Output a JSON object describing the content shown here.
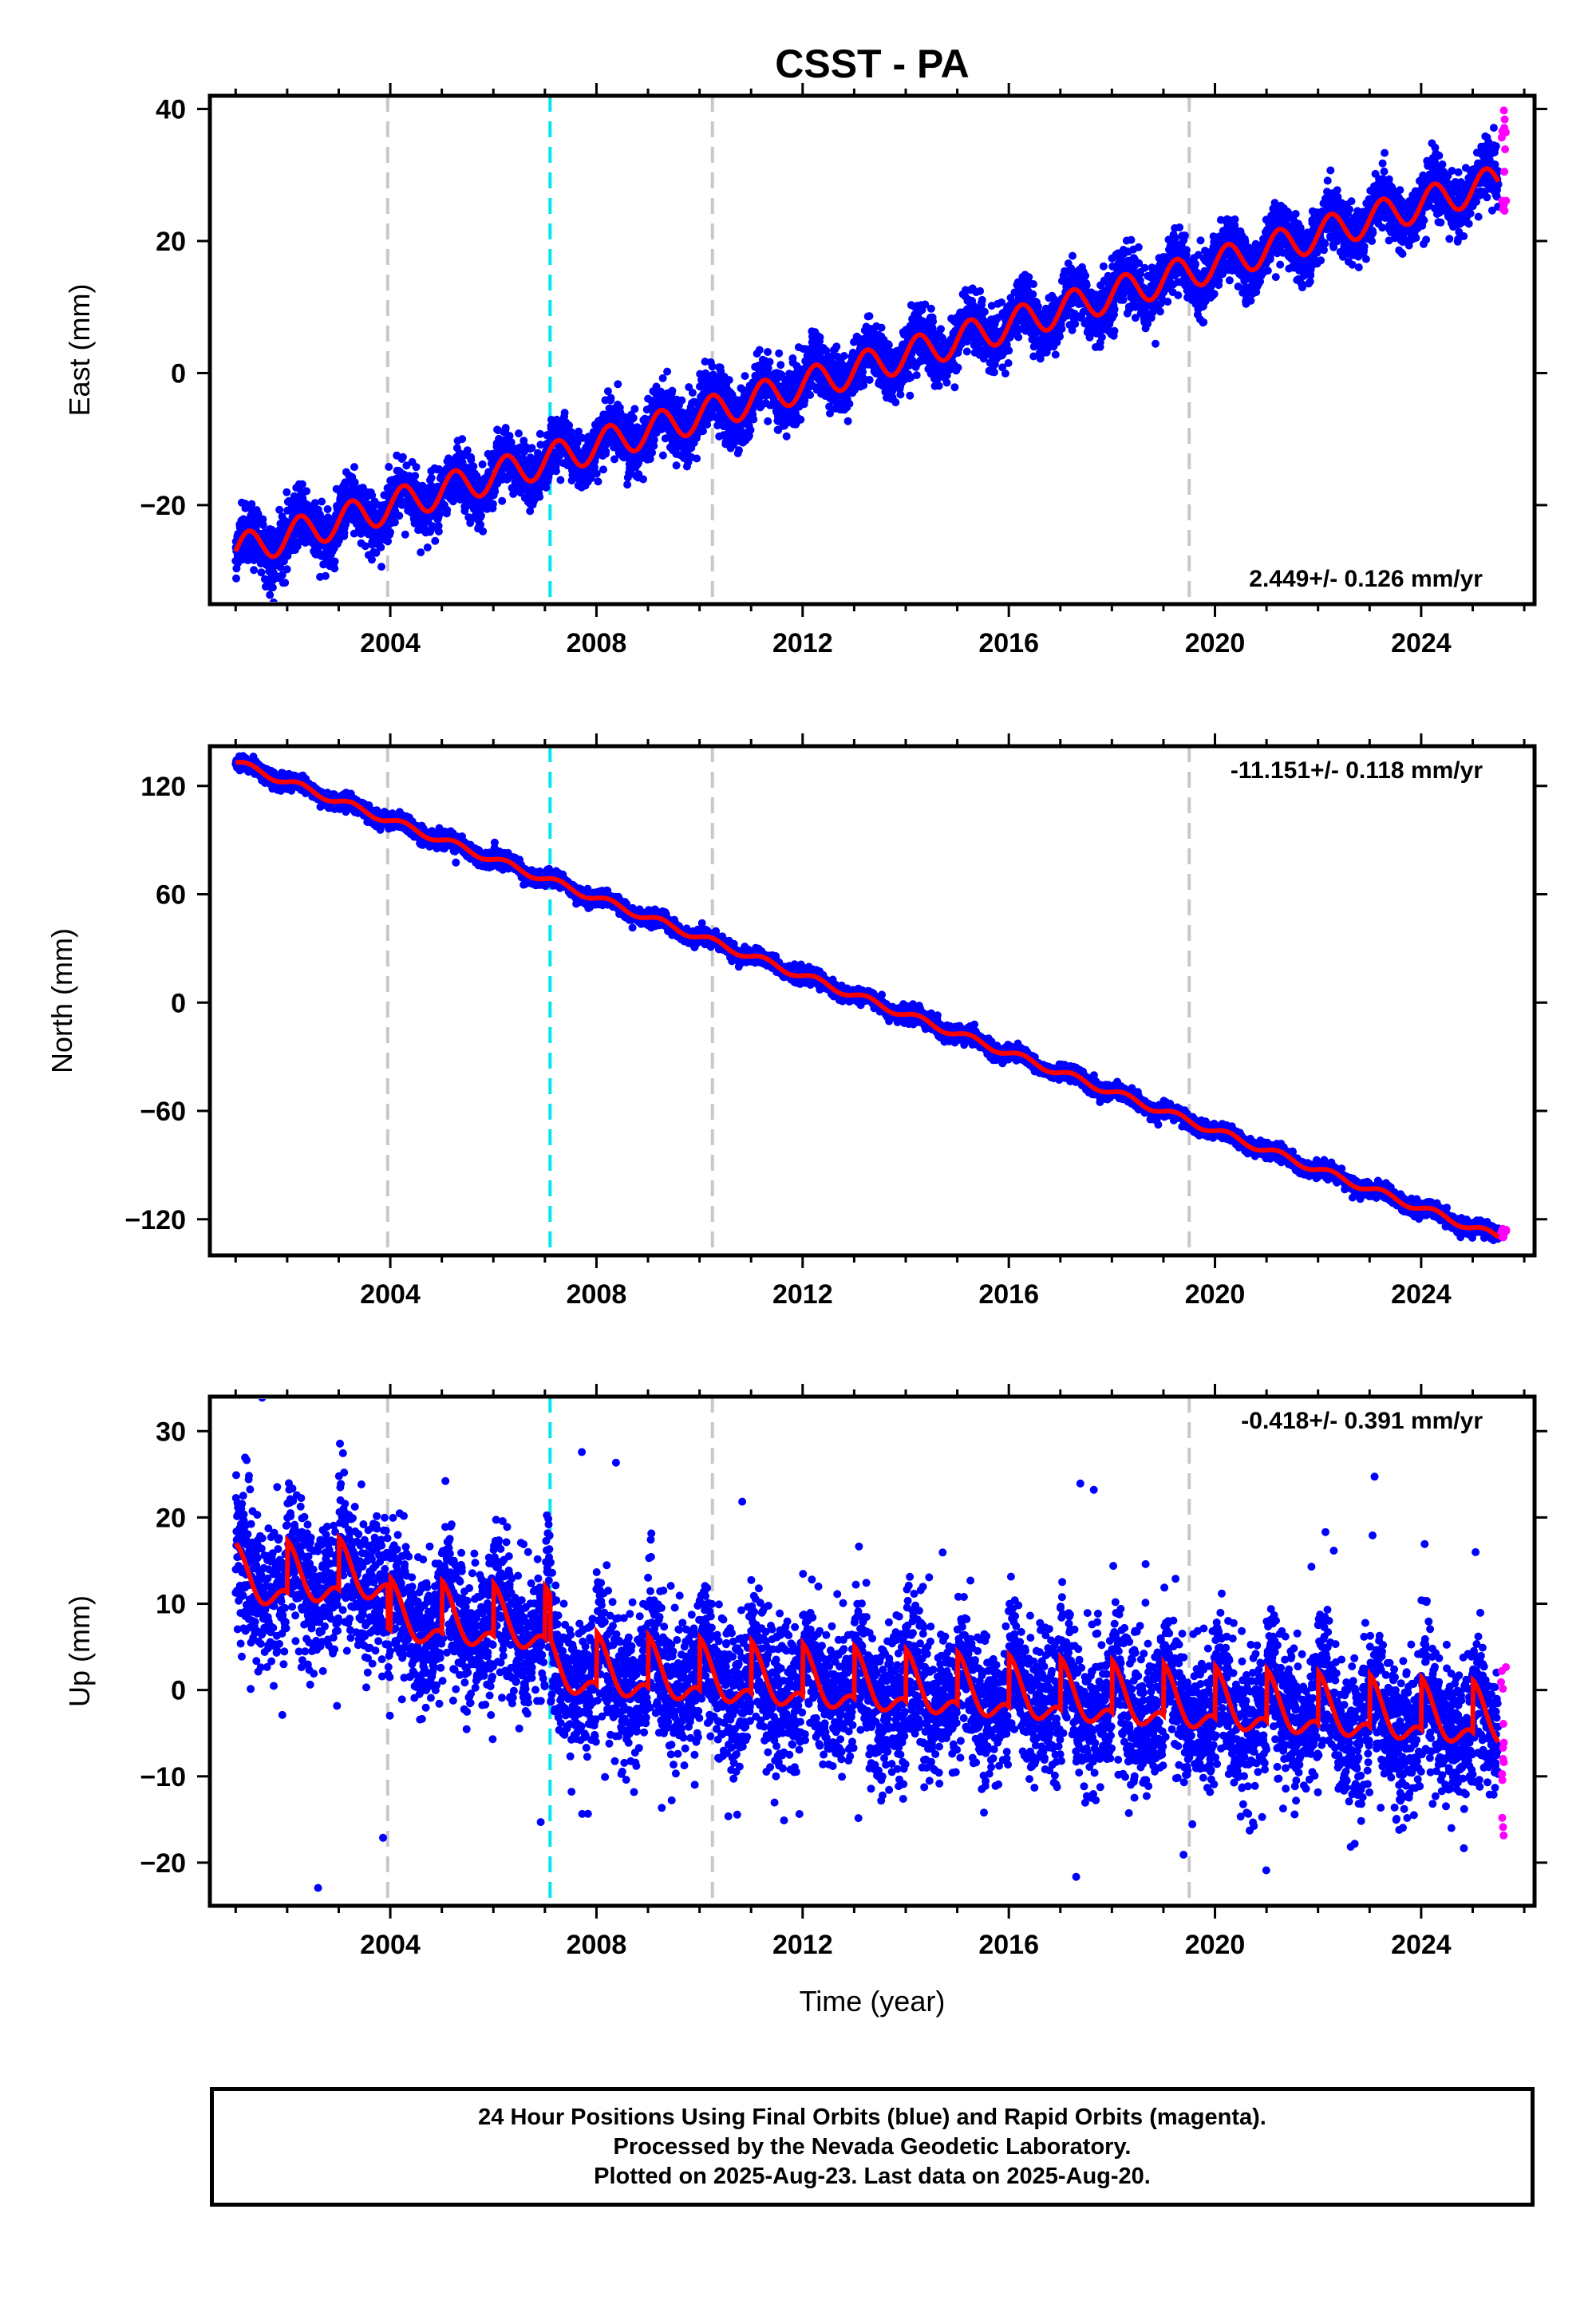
{
  "chart_data": {
    "title": "CSST - PA",
    "type": "scatter",
    "xlabel": "Time (year)",
    "xlim": [
      2000.5,
      2026.2
    ],
    "x_ticks": [
      "2004",
      "2008",
      "2012",
      "2016",
      "2020",
      "2024"
    ],
    "colors": {
      "final_orbits": "#0000ff",
      "rapid_orbits": "#ff00ff",
      "model": "#ff0000",
      "equipment_change": "#c8c8c8",
      "earthquake": "#00e5ee"
    },
    "vertical_lines": [
      {
        "x": 2003.95,
        "color": "#c8c8c8",
        "style": "dashed"
      },
      {
        "x": 2007.1,
        "color": "#00e5ee",
        "style": "dashed"
      },
      {
        "x": 2010.25,
        "color": "#c8c8c8",
        "style": "dashed"
      },
      {
        "x": 2019.5,
        "color": "#c8c8c8",
        "style": "dashed"
      }
    ],
    "panels": [
      {
        "ylabel": "East (mm)",
        "ylim": [
          -35,
          42
        ],
        "y_ticks": [
          {
            "value": 40,
            "label": "40"
          },
          {
            "value": 20,
            "label": "20"
          },
          {
            "value": 0,
            "label": "0"
          },
          {
            "value": -20,
            "label": "−20"
          }
        ],
        "rate_label": "2.449+/- 0.126 mm/yr",
        "rate_position": "bottom-right",
        "start": 2001.0,
        "end": 2025.5,
        "trend": {
          "x": [
            2001.0,
            2025.5
          ],
          "y": [
            -27,
            29
          ]
        },
        "seasonal_amplitude": 2.5,
        "scatter": 2.2,
        "outlier_rate": 0.004,
        "rapid": {
          "x": [
            2025.55,
            2025.65
          ],
          "y": [
            24,
            41
          ]
        }
      },
      {
        "ylabel": "North (mm)",
        "ylim": [
          -140,
          142
        ],
        "y_ticks": [
          {
            "value": 120,
            "label": "120"
          },
          {
            "value": 60,
            "label": "60"
          },
          {
            "value": 0,
            "label": "0"
          },
          {
            "value": -60,
            "label": "−60"
          },
          {
            "value": -120,
            "label": "−120"
          }
        ],
        "rate_label": "-11.151+/- 0.118 mm/yr",
        "rate_position": "top-right",
        "start": 2001.0,
        "end": 2025.5,
        "trend": {
          "x": [
            2001.0,
            2025.5
          ],
          "y": [
            133,
            -130
          ]
        },
        "seasonal_amplitude": 2.0,
        "scatter": 2.0,
        "outlier_rate": 0.002,
        "rapid": {
          "x": [
            2025.55,
            2025.65
          ],
          "y": [
            -131,
            -125
          ]
        }
      },
      {
        "ylabel": "Up (mm)",
        "ylim": [
          -25,
          34
        ],
        "y_ticks": [
          {
            "value": 30,
            "label": "30"
          },
          {
            "value": 20,
            "label": "20"
          },
          {
            "value": 10,
            "label": "10"
          },
          {
            "value": 0,
            "label": "0"
          },
          {
            "value": -10,
            "label": "−10"
          },
          {
            "value": -20,
            "label": "−20"
          }
        ],
        "rate_label": "-0.418+/- 0.391 mm/yr",
        "rate_position": "top-right",
        "start": 2001.0,
        "end": 2025.5,
        "trend": {
          "x": [
            2001.0,
            2003.95,
            2003.96,
            2007.1,
            2007.11,
            2025.5
          ],
          "y": [
            12,
            13,
            8,
            7,
            2,
            -4
          ]
        },
        "seasonal_amplitude": 5.0,
        "scatter": 4.2,
        "outlier_rate": 0.01,
        "rapid": {
          "x": [
            2025.55,
            2025.65
          ],
          "y": [
            -17,
            6
          ]
        }
      }
    ]
  },
  "footer": {
    "line1": "24 Hour Positions Using Final Orbits (blue) and Rapid Orbits (magenta).",
    "line2": "Processed by the Nevada Geodetic Laboratory.",
    "line3": "Plotted on 2025-Aug-23. Last data on 2025-Aug-20."
  }
}
